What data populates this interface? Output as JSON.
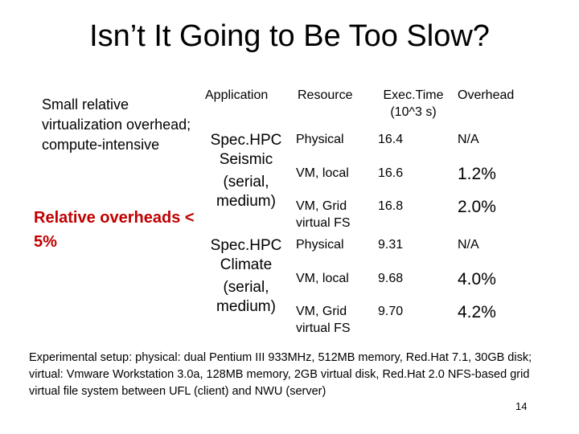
{
  "title": "Isn’t It Going to Be Too Slow?",
  "left_note_1": "Small relative virtualization overhead; compute-intensive",
  "left_note_2": "Relative overheads < 5%",
  "colors": {
    "accent": "#c00000"
  },
  "table": {
    "headers": {
      "application": "Application",
      "resource": "Resource",
      "exectime": "Exec.Time (10^3 s)",
      "overhead": "Overhead"
    },
    "groups": [
      {
        "app_line1": "Spec.HPC",
        "app_line2": "Seismic",
        "app_line3": "(serial,",
        "app_line4": "medium)",
        "rows": [
          {
            "resource": "Physical",
            "exectime": "16.4",
            "overhead": "N/A"
          },
          {
            "resource": "VM, local",
            "exectime": "16.6",
            "overhead": "1.2%"
          },
          {
            "resource": "VM, Grid virtual FS",
            "exectime": "16.8",
            "overhead": "2.0%"
          }
        ]
      },
      {
        "app_line1": "Spec.HPC",
        "app_line2": "Climate",
        "app_line3": "(serial,",
        "app_line4": "medium)",
        "rows": [
          {
            "resource": "Physical",
            "exectime": "9.31",
            "overhead": "N/A"
          },
          {
            "resource": "VM, local",
            "exectime": "9.68",
            "overhead": "4.0%"
          },
          {
            "resource": "VM, Grid virtual FS",
            "exectime": "9.70",
            "overhead": "4.2%"
          }
        ]
      }
    ]
  },
  "footer": "Experimental setup: physical: dual Pentium III 933MHz, 512MB memory, Red.Hat 7.1, 30GB disk; virtual: Vmware Workstation 3.0a, 128MB memory, 2GB virtual disk, Red.Hat 2.0 NFS-based grid virtual file system between UFL (client) and NWU (server)",
  "page_number": "14"
}
